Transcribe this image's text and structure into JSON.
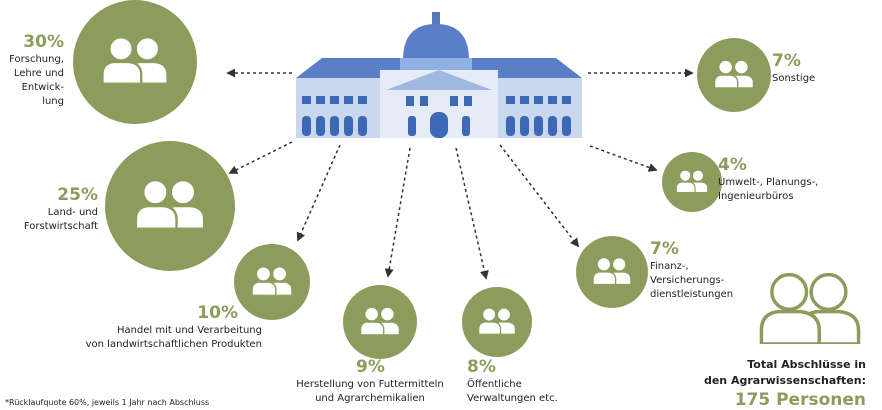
{
  "nodes": [
    {
      "percent": "30%",
      "lines": [
        "Forschung,",
        "Lehre und",
        "Entwick-",
        "lung"
      ]
    },
    {
      "percent": "25%",
      "lines": [
        "Land- und",
        "Forstwirtschaft"
      ]
    },
    {
      "percent": "10%",
      "lines": [
        "Handel mit und Verarbeitung",
        "von landwirtschaftlichen Produkten"
      ]
    },
    {
      "percent": "9%",
      "lines": [
        "Herstellung von Futtermitteln",
        "und Agrarchemikalien"
      ]
    },
    {
      "percent": "8%",
      "lines": [
        "Öffentliche",
        "Verwaltungen etc."
      ]
    },
    {
      "percent": "7%",
      "lines": [
        "Finanz-,",
        "Versicherungs-",
        "dienstleistungen"
      ]
    },
    {
      "percent": "4%",
      "lines": [
        "Umwelt-, Planungs-,",
        "Ingenieurbüros"
      ]
    },
    {
      "percent": "7%",
      "lines": [
        "Sonstige"
      ]
    }
  ],
  "total": {
    "lines": [
      "Total Abschlüsse in",
      "den Agrarwissenschaften:"
    ],
    "value": "175 Personen"
  },
  "footnote": "*Rücklaufquote 60%, jeweils 1 Jahr nach Abschluss"
}
